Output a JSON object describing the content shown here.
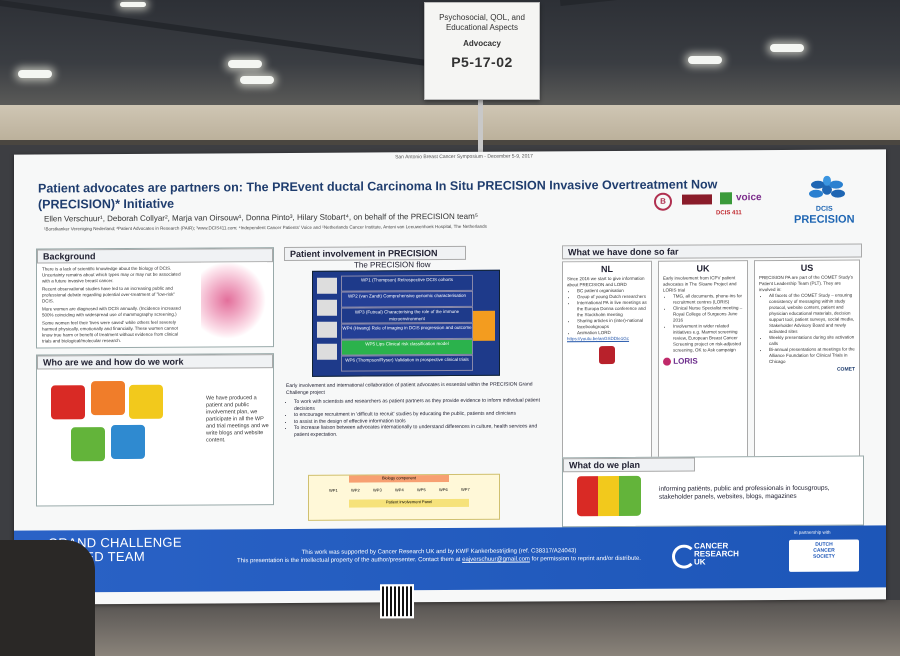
{
  "sign": {
    "category": "Psychosocial, QOL, and Educational Aspects",
    "subcategory": "Advocacy",
    "board_number": "P5-17-02"
  },
  "poster": {
    "conference": "San Antonio Breast Cancer Symposium - December 5-9, 2017",
    "title": "Patient advocates are partners on: The PREvent ductal Carcinoma In Situ PRECISION Invasive Overtreatment Now (PRECISION)* Initiative",
    "authors": "Ellen Verschuur¹, Deborah Collyar², Marja van Oirsouw¹, Donna Pinto³, Hilary Stobart⁴, on behalf of the PRECISION team⁵",
    "affiliations": "¹Borstkanker Vereniging Nederland; ²Patient Advocates in Research (PAIR); ³www.DCIS411.com; ⁴Independent Cancer Patients' Voice and ⁵Netherlands Cancer Institute, Antoni van Leeuwenhoek Hospital, The Netherlands",
    "logos": {
      "dcis411": "DCIS 411",
      "icpv": "voice",
      "precision_line1": "DCIS",
      "precision_line2": "PRECISION"
    },
    "background": {
      "heading": "Background",
      "p1": "There is a lack of scientific knowledge about the biology of DCIS. Uncertainty remains about which types may or may not be associated with a future invasive breast cancer.",
      "p2": "Recent observational studies have led to an increasing public and professional debate regarding potential over-treatment of \"low-risk\" DCIS.",
      "p3": "More women are diagnosed with DCIS annually. (Incidence increased 500% coinciding with widespread use of mammography screening.)",
      "p4": "Some women feel their 'lives were saved' while others feel severely harmed physically, emotionally and financially. These women cannot know true harm or benefit of treatment without evidence from clinical trials and biological/molecular research."
    },
    "who": {
      "heading": "Who are we and how do we work",
      "text": "We have produced a patient and public involvement plan, we participate in all the WP and trial meetings and we write blogs and website content."
    },
    "involvement": {
      "heading": "Patient involvement in PRECISION",
      "flow_title": "The PRECISION flow",
      "wps": [
        "WP1 (Thompson) Retrospective DCIS cohorts",
        "WP2 (van Zandt) Comprehensive genomic characterisation",
        "WP3 (Futreal) Characterising the role of the immune microenvironment",
        "WP4 (Hwang) Role of imaging in DCIS progression and outcome",
        "WP5 Lips Clinical risk classification model",
        "WP6 (Thompson/Ryser) Validation in prospective clinical trials"
      ],
      "intro": "Early involvement and international collaboration of patient advocates is essential within the PRECISION Grand Challenge project",
      "bullets": [
        "To work with scientists and researchers as patient partners as they provide evidence to inform individual patient decisions",
        "to encourage recruitment in 'difficult to recruit' studies by educating the public, patients and clinicians",
        "to assist in the design of effective information tools",
        "To increase liaison between advocates internationally to understand differences in culture, health services and patient expectation."
      ],
      "diagram_labels": [
        "Biology component",
        "WP1",
        "WP2",
        "WP3",
        "WP4",
        "WP5",
        "WP6",
        "WP7",
        "Patient involvement Panel"
      ]
    },
    "done": {
      "heading": "What we have done so far",
      "nl": {
        "h": "NL",
        "intro": "Since 2016 we start to give information about PRECISION and LORD",
        "items": [
          "BC patient organisation",
          "Group of young Dutch researchers",
          "International PA in live meetings as the Europa Donna conference and the Stockholm meeting",
          "Sharing articles in (inter)-national facebookgroups",
          "Animation LORD"
        ],
        "link": "https://youtu.be/anGSDDIe1Gc"
      },
      "uk": {
        "h": "UK",
        "intro": "Early involvement from ICPV patient advocates in The Sloane Project and LORIS trial",
        "items": [
          "TMG, all documents, phone-ins for recruitment centres (LORIS)",
          "Clinical Nurse Specialist meeting –Royal College of Surgeons June 2016",
          "Involvement in wider related initiatives e.g. Marmot screening review, European Breast Cancer Screening project on risk-adjusted screening, OK to Ask campaign"
        ],
        "logo": "LORIS"
      },
      "us": {
        "h": "US",
        "intro": "PRECISION PA are part of the COMET Study's Patient Leadership Team (PLT). They are involved in:",
        "items": [
          "All facets of the COMET Study – ensuring consistency of messaging within study protocol, website content, patient and physician educational materials, decision support tool, patient surveys, social media, Stakeholder Advisory Board and newly activated sites",
          "Weekly presentations during site activation calls",
          "Bi-annual presentations at meetings for the Alliance Foundation for Clinical Trials in Chicago"
        ],
        "logo": "COMET"
      }
    },
    "plan": {
      "heading": "What do we plan",
      "text": "informing patiënts, public and professionals in focusgroups, stakeholder panels, websites, blogs, magazines"
    },
    "banner": {
      "grand": "GRAND CHALLENGE",
      "funded": "FUNDED TEAM",
      "line1": "This work was supported by Cancer Research UK and by KWF Kankerbestrijding (ref. C38317/A24043)",
      "line2a": "This presentation is the intellectual property of the author/presenter. Contact them at",
      "email": "eajverschuur@gmail.com",
      "line2b": "for permission to reprint and/or distribute.",
      "cruk1": "CANCER",
      "cruk2": "RESEARCH",
      "cruk3": "UK",
      "partner": "in partnership with",
      "dcs1": "DUTCH",
      "dcs2": "CANCER",
      "dcs3": "SOCIETY"
    }
  },
  "colors": {
    "title_blue": "#1f3d6e",
    "banner_blue": "#2a62c6",
    "wp_navy": "#1e3a8a",
    "wp_green": "#2bb24c",
    "wp_orange": "#f39c1f"
  }
}
